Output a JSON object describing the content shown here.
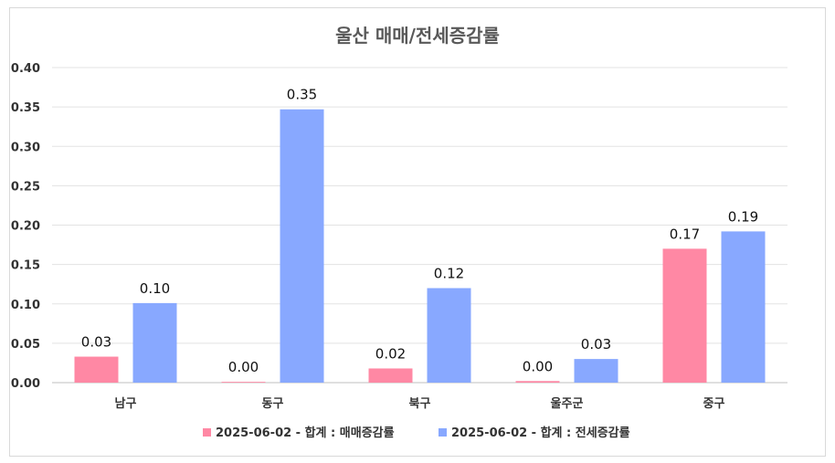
{
  "chart_data": {
    "type": "bar",
    "title": "울산 매매/전세증감률",
    "categories": [
      "남구",
      "동구",
      "북구",
      "울주군",
      "중구"
    ],
    "ylim": [
      0,
      0.4
    ],
    "yticks": [
      "0.00",
      "0.05",
      "0.10",
      "0.15",
      "0.20",
      "0.25",
      "0.30",
      "0.35",
      "0.40"
    ],
    "series": [
      {
        "name": "2025-06-02 - 합계 : 매매증감률",
        "color": "#ff88a4",
        "values": [
          0.033,
          0.001,
          0.018,
          0.002,
          0.17
        ],
        "labels": [
          "0.03",
          "0.00",
          "0.02",
          "0.00",
          "0.17"
        ]
      },
      {
        "name": "2025-06-02 - 합계 : 전세증감률",
        "color": "#88a8ff",
        "values": [
          0.101,
          0.347,
          0.12,
          0.03,
          0.192
        ],
        "labels": [
          "0.10",
          "0.35",
          "0.12",
          "0.03",
          "0.19"
        ]
      }
    ],
    "grid": true,
    "legend": "bottom"
  }
}
